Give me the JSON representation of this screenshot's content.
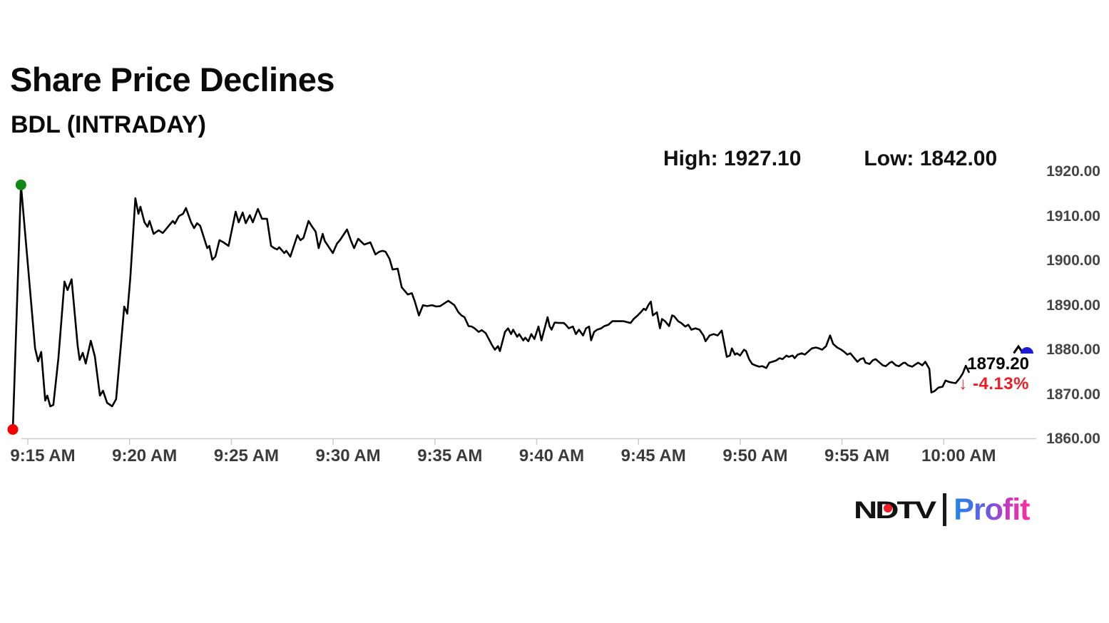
{
  "header": {
    "title": "Share Price Declines",
    "subtitle": "BDL (INTRADAY)"
  },
  "stats": {
    "high_text": "High: 1927.10",
    "low_text": "Low: 1842.00"
  },
  "price_callout": {
    "last_price": "1879.20",
    "down_arrow": "↓",
    "change_percent": "-4.13%"
  },
  "logo": {
    "ndtv": "NDTV",
    "profit": "Profit"
  },
  "colors": {
    "line": "#000000",
    "axis": "#cccccc",
    "x_label": "#3a3a3a",
    "y_label": "#454545",
    "negative_red": "#ee1c25",
    "open_dot_red": "#f40000",
    "peak_dot_green": "#108a14",
    "current_price_blue": "#1d1dd6",
    "profit_gradient": [
      "#1e88e5",
      "#ff2d9a"
    ]
  },
  "chart_data": {
    "type": "line",
    "title": "Share Price Declines",
    "instrument": "BDL (INTRADAY)",
    "high": 1927.1,
    "low": 1842.0,
    "last_price": 1879.2,
    "change_percent": -4.13,
    "x_unit": "minutes after 9:15 AM",
    "x_tick_labels": [
      "9:15 AM",
      "9:20 AM",
      "9:25 AM",
      "9:30 AM",
      "9:35 AM",
      "9:40 AM",
      "9:45 AM",
      "9:50 AM",
      "9:55 AM",
      "10:00 AM"
    ],
    "y_tick_labels": [
      "1920.00",
      "1910.00",
      "1900.00",
      "1890.00",
      "1880.00",
      "1870.00",
      "1860.00"
    ],
    "y_tick_values": [
      1920,
      1910,
      1900,
      1890,
      1880,
      1870,
      1860
    ],
    "ylim": [
      1860,
      1920
    ],
    "grid": false,
    "legend": false,
    "markers": {
      "start_dot": "red",
      "session_peak_dot": "green",
      "current_price_dot": "blue-semicircle"
    },
    "series": [
      {
        "name": "BDL intraday price",
        "points": [
          [
            0,
            1862
          ],
          [
            0.4,
            1916.9
          ],
          [
            1.1,
            1880.2
          ],
          [
            1.25,
            1877.3
          ],
          [
            1.4,
            1879.4
          ],
          [
            1.6,
            1868.5
          ],
          [
            1.7,
            1869.6
          ],
          [
            1.85,
            1867.2
          ],
          [
            2,
            1867.5
          ],
          [
            2.25,
            1878
          ],
          [
            2.55,
            1895.2
          ],
          [
            2.7,
            1893.3
          ],
          [
            2.9,
            1895.7
          ],
          [
            3.2,
            1880.8
          ],
          [
            3.3,
            1877.6
          ],
          [
            3.45,
            1879.2
          ],
          [
            3.6,
            1876.8
          ],
          [
            3.85,
            1881.9
          ],
          [
            4.05,
            1878.4
          ],
          [
            4.3,
            1869.6
          ],
          [
            4.45,
            1870.7
          ],
          [
            4.65,
            1868
          ],
          [
            4.9,
            1867.2
          ],
          [
            5.1,
            1868.8
          ],
          [
            5.35,
            1881.6
          ],
          [
            5.5,
            1889.6
          ],
          [
            5.65,
            1888
          ],
          [
            5.8,
            1896
          ],
          [
            6.05,
            1913.9
          ],
          [
            6.2,
            1910.4
          ],
          [
            6.3,
            1912
          ],
          [
            6.5,
            1908.5
          ],
          [
            6.65,
            1907.5
          ],
          [
            6.75,
            1908.8
          ],
          [
            6.95,
            1905.9
          ],
          [
            7.2,
            1906.7
          ],
          [
            7.4,
            1906.1
          ],
          [
            7.55,
            1906.9
          ],
          [
            7.75,
            1908
          ],
          [
            7.9,
            1908.8
          ],
          [
            8,
            1908.2
          ],
          [
            8.2,
            1909.9
          ],
          [
            8.4,
            1910.4
          ],
          [
            8.55,
            1911.7
          ],
          [
            8.8,
            1908.5
          ],
          [
            8.95,
            1907.2
          ],
          [
            9.1,
            1908.3
          ],
          [
            9.25,
            1907.7
          ],
          [
            9.6,
            1902.7
          ],
          [
            9.7,
            1903.2
          ],
          [
            9.85,
            1900.1
          ],
          [
            10,
            1900.8
          ],
          [
            10.2,
            1904.5
          ],
          [
            10.4,
            1904
          ],
          [
            10.65,
            1903.2
          ],
          [
            11,
            1910.9
          ],
          [
            11.15,
            1908.5
          ],
          [
            11.35,
            1910.7
          ],
          [
            11.5,
            1908.3
          ],
          [
            11.7,
            1910.1
          ],
          [
            11.85,
            1908.5
          ],
          [
            12.1,
            1911.5
          ],
          [
            12.3,
            1909.3
          ],
          [
            12.55,
            1909.3
          ],
          [
            12.75,
            1903.2
          ],
          [
            12.9,
            1902.7
          ],
          [
            13.05,
            1902.4
          ],
          [
            13.15,
            1902.9
          ],
          [
            13.4,
            1901.6
          ],
          [
            13.5,
            1902.1
          ],
          [
            13.7,
            1900.8
          ],
          [
            14.05,
            1905.6
          ],
          [
            14.2,
            1904.5
          ],
          [
            14.35,
            1905
          ],
          [
            14.6,
            1908.8
          ],
          [
            14.75,
            1907.7
          ],
          [
            14.95,
            1906.4
          ],
          [
            15.1,
            1902.7
          ],
          [
            15.3,
            1905.9
          ],
          [
            15.4,
            1904.3
          ],
          [
            15.8,
            1901.6
          ],
          [
            16,
            1903.7
          ],
          [
            16.15,
            1904.5
          ],
          [
            16.5,
            1906.9
          ],
          [
            16.7,
            1904.3
          ],
          [
            16.85,
            1902.7
          ],
          [
            17.05,
            1904.8
          ],
          [
            17.35,
            1903.5
          ],
          [
            17.65,
            1904
          ],
          [
            17.8,
            1902.4
          ],
          [
            17.9,
            1901.3
          ],
          [
            18.1,
            1901.9
          ],
          [
            18.25,
            1902.1
          ],
          [
            18.4,
            1901.9
          ],
          [
            18.6,
            1900.3
          ],
          [
            18.75,
            1897.9
          ],
          [
            19,
            1898.1
          ],
          [
            19.2,
            1893.9
          ],
          [
            19.35,
            1893.1
          ],
          [
            19.5,
            1892.3
          ],
          [
            19.7,
            1892.6
          ],
          [
            19.85,
            1890.7
          ],
          [
            20.05,
            1887.6
          ],
          [
            20.25,
            1889.9
          ],
          [
            20.45,
            1889.7
          ],
          [
            20.7,
            1889.9
          ],
          [
            20.9,
            1889.6
          ],
          [
            21.1,
            1889.7
          ],
          [
            21.5,
            1890.9
          ],
          [
            21.8,
            1889.9
          ],
          [
            22,
            1888.3
          ],
          [
            22.15,
            1887.6
          ],
          [
            22.3,
            1887.2
          ],
          [
            22.5,
            1885.2
          ],
          [
            22.65,
            1885.1
          ],
          [
            22.8,
            1884.7
          ],
          [
            23,
            1883.9
          ],
          [
            23.15,
            1884.3
          ],
          [
            23.35,
            1883.6
          ],
          [
            23.5,
            1882.3
          ],
          [
            23.65,
            1881
          ],
          [
            23.8,
            1879.9
          ],
          [
            23.95,
            1880.7
          ],
          [
            24.05,
            1879.6
          ],
          [
            24.3,
            1883.9
          ],
          [
            24.45,
            1884.7
          ],
          [
            24.6,
            1883.4
          ],
          [
            24.7,
            1884.4
          ],
          [
            24.9,
            1882.8
          ],
          [
            25,
            1883.4
          ],
          [
            25.2,
            1882
          ],
          [
            25.3,
            1882.6
          ],
          [
            25.45,
            1881.8
          ],
          [
            25.6,
            1883.4
          ],
          [
            25.75,
            1882.3
          ],
          [
            25.95,
            1885.1
          ],
          [
            26.1,
            1882
          ],
          [
            26.4,
            1887.2
          ],
          [
            26.5,
            1885.2
          ],
          [
            26.6,
            1884.4
          ],
          [
            26.75,
            1886
          ],
          [
            26.95,
            1885.9
          ],
          [
            27.2,
            1885.9
          ],
          [
            27.3,
            1885.5
          ],
          [
            27.45,
            1884.7
          ],
          [
            27.65,
            1885.1
          ],
          [
            27.8,
            1883.4
          ],
          [
            27.95,
            1884.4
          ],
          [
            28.15,
            1883.1
          ],
          [
            28.3,
            1884.7
          ],
          [
            28.45,
            1885.1
          ],
          [
            28.55,
            1882
          ],
          [
            28.7,
            1883.9
          ],
          [
            28.85,
            1884.4
          ],
          [
            29.05,
            1884.7
          ],
          [
            29.2,
            1885.2
          ],
          [
            29.4,
            1885.5
          ],
          [
            29.6,
            1886.3
          ],
          [
            30.15,
            1886.3
          ],
          [
            30.5,
            1885.9
          ],
          [
            30.65,
            1886.8
          ],
          [
            30.85,
            1887.6
          ],
          [
            31,
            1888.3
          ],
          [
            31.15,
            1889.1
          ],
          [
            31.25,
            1888.8
          ],
          [
            31.4,
            1890.1
          ],
          [
            31.5,
            1890.7
          ],
          [
            31.6,
            1887.6
          ],
          [
            31.8,
            1888.3
          ],
          [
            31.95,
            1884.7
          ],
          [
            32.05,
            1886.8
          ],
          [
            32.2,
            1886.3
          ],
          [
            32.4,
            1885.2
          ],
          [
            32.55,
            1887.6
          ],
          [
            32.65,
            1887.4
          ],
          [
            32.85,
            1886.3
          ],
          [
            33,
            1885.9
          ],
          [
            33.2,
            1885.1
          ],
          [
            33.35,
            1885.5
          ],
          [
            33.5,
            1884.4
          ],
          [
            33.7,
            1884.7
          ],
          [
            33.9,
            1884.4
          ],
          [
            34.1,
            1883.1
          ],
          [
            34.2,
            1881.8
          ],
          [
            34.4,
            1883.1
          ],
          [
            34.6,
            1883.4
          ],
          [
            34.8,
            1883.1
          ],
          [
            35,
            1884.2
          ],
          [
            35.25,
            1878.3
          ],
          [
            35.4,
            1878.6
          ],
          [
            35.5,
            1880.2
          ],
          [
            35.65,
            1878.8
          ],
          [
            35.75,
            1879.1
          ],
          [
            35.9,
            1878.6
          ],
          [
            36.1,
            1879.9
          ],
          [
            36.2,
            1879.6
          ],
          [
            36.35,
            1877.8
          ],
          [
            36.5,
            1876.7
          ],
          [
            36.65,
            1876.4
          ],
          [
            36.85,
            1876.1
          ],
          [
            37,
            1876.2
          ],
          [
            37.2,
            1875.8
          ],
          [
            37.35,
            1877
          ],
          [
            37.5,
            1877.2
          ],
          [
            37.7,
            1877.5
          ],
          [
            37.85,
            1878
          ],
          [
            38,
            1877.8
          ],
          [
            38.2,
            1878.6
          ],
          [
            38.3,
            1878.3
          ],
          [
            38.5,
            1878.6
          ],
          [
            38.6,
            1878
          ],
          [
            38.75,
            1878.8
          ],
          [
            38.95,
            1879.1
          ],
          [
            39.1,
            1878.8
          ],
          [
            39.3,
            1879.6
          ],
          [
            39.45,
            1880.2
          ],
          [
            39.65,
            1880.4
          ],
          [
            39.8,
            1880.2
          ],
          [
            39.95,
            1879.9
          ],
          [
            40.15,
            1880.7
          ],
          [
            40.35,
            1883.1
          ],
          [
            40.5,
            1881.2
          ],
          [
            40.7,
            1880.4
          ],
          [
            40.9,
            1879.9
          ],
          [
            41.05,
            1879.4
          ],
          [
            41.2,
            1878.8
          ],
          [
            41.35,
            1879.1
          ],
          [
            41.55,
            1878
          ],
          [
            41.7,
            1877.2
          ],
          [
            41.85,
            1877.8
          ],
          [
            42,
            1878
          ],
          [
            42.1,
            1877
          ],
          [
            42.3,
            1876.7
          ],
          [
            42.45,
            1877.5
          ],
          [
            42.6,
            1877.8
          ],
          [
            42.8,
            1877
          ],
          [
            42.95,
            1876.4
          ],
          [
            43.1,
            1876.2
          ],
          [
            43.3,
            1877
          ],
          [
            43.4,
            1877.2
          ],
          [
            43.6,
            1876.4
          ],
          [
            43.75,
            1876.2
          ],
          [
            43.95,
            1876.9
          ],
          [
            44.05,
            1877
          ],
          [
            44.2,
            1876.4
          ],
          [
            44.4,
            1876.1
          ],
          [
            44.6,
            1876.7
          ],
          [
            44.7,
            1877
          ],
          [
            44.9,
            1876.4
          ],
          [
            45.05,
            1877.2
          ],
          [
            45.25,
            1875.6
          ],
          [
            45.35,
            1870.3
          ],
          [
            45.5,
            1870.6
          ],
          [
            45.7,
            1871.4
          ],
          [
            45.9,
            1871.6
          ],
          [
            46.05,
            1873
          ],
          [
            46.2,
            1872.7
          ],
          [
            46.4,
            1872.5
          ],
          [
            46.55,
            1872.4
          ],
          [
            46.75,
            1873.5
          ],
          [
            46.9,
            1874.6
          ],
          [
            47.05,
            1876.3
          ],
          [
            47.2,
            1874.9
          ]
        ]
      }
    ]
  }
}
